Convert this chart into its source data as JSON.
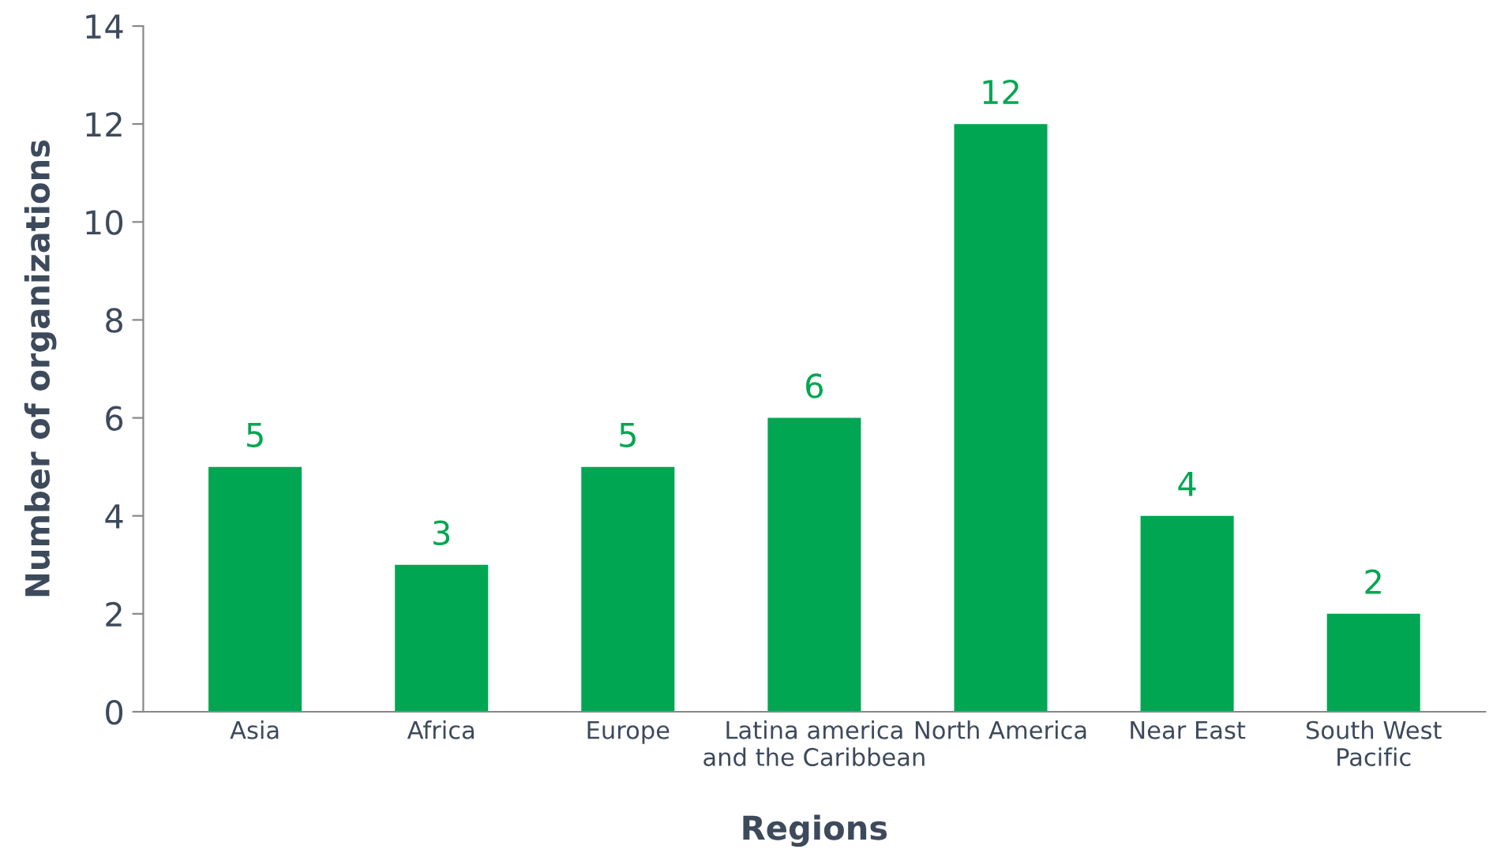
{
  "chart_data": {
    "type": "bar",
    "xlabel": "Regions",
    "ylabel": "Number of organizations",
    "categories": [
      "Asia",
      "Africa",
      "Europe",
      "Latina america\nand the Caribbean",
      "North America",
      "Near East",
      "South West\nPacific"
    ],
    "values": [
      5,
      3,
      5,
      6,
      12,
      4,
      2
    ],
    "color": "#00a651",
    "ylim": [
      0,
      14
    ],
    "yticks": [
      0,
      2,
      4,
      6,
      8,
      10,
      12,
      14
    ],
    "grid": false,
    "data_labels": true
  }
}
